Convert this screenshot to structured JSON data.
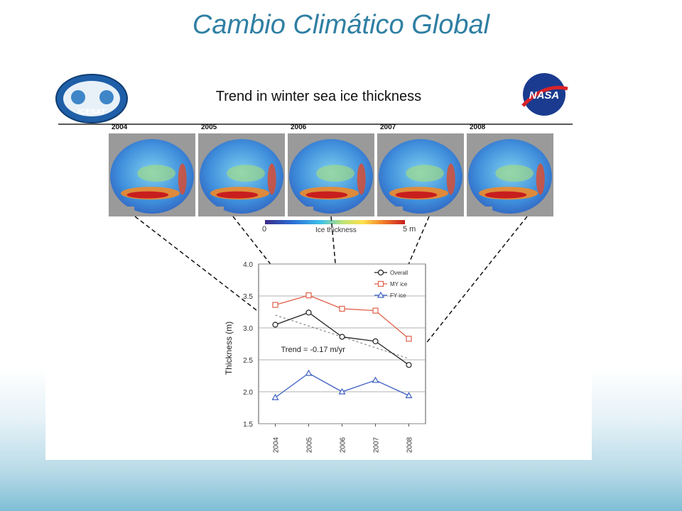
{
  "slide": {
    "title": "Cambio Climático Global"
  },
  "figure": {
    "title": "Trend in winter sea ice thickness",
    "logos": {
      "left": "ICESAT",
      "right": "NASA"
    },
    "maps": [
      {
        "year": "2004"
      },
      {
        "year": "2005"
      },
      {
        "year": "2006"
      },
      {
        "year": "2007"
      },
      {
        "year": "2008"
      }
    ],
    "colorbar": {
      "min_label": "0",
      "max_label": "5 m",
      "label": "Ice thickness"
    }
  },
  "chart_data": {
    "type": "line",
    "x": [
      "2004",
      "2005",
      "2006",
      "2007",
      "2008"
    ],
    "ylabel": "Thickness (m)",
    "xlabel": "",
    "ylim": [
      1.5,
      4.0
    ],
    "yticks": [
      "1.5",
      "2.0",
      "2.5",
      "3.0",
      "3.5",
      "4.0"
    ],
    "grid": true,
    "legend": "top-right",
    "series": [
      {
        "name": "Overall",
        "values": [
          3.05,
          3.24,
          2.86,
          2.79,
          2.42
        ],
        "color": "#222222",
        "marker": "circle"
      },
      {
        "name": "MY ice",
        "values": [
          3.36,
          3.51,
          3.3,
          3.27,
          2.83
        ],
        "color": "#e0604a",
        "marker": "square"
      },
      {
        "name": "FY ice",
        "values": [
          1.91,
          2.29,
          2.0,
          2.18,
          1.94
        ],
        "color": "#3d5fc2",
        "marker": "triangle"
      }
    ],
    "trend": {
      "label": "Trend = -0.17 m/yr",
      "start": 3.2,
      "end": 2.52
    }
  }
}
